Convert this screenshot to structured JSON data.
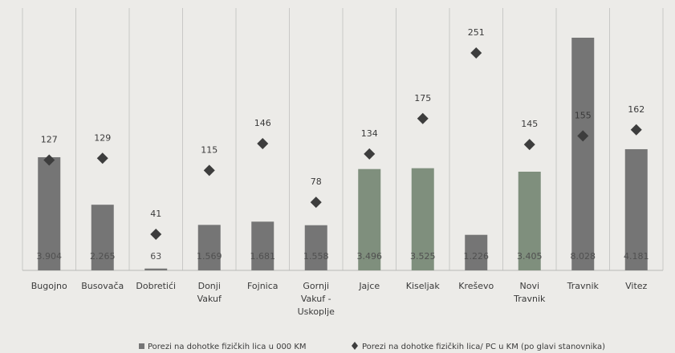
{
  "chart_data": {
    "type": "bar",
    "categories": [
      [
        "Bugojno"
      ],
      [
        "Busovača"
      ],
      [
        "Dobretići"
      ],
      [
        "Donji",
        "Vakuf"
      ],
      [
        "Fojnica"
      ],
      [
        "Gornji",
        "Vakuf -",
        "Uskoplje"
      ],
      [
        "Jajce"
      ],
      [
        "Kiseljak"
      ],
      [
        "Kreševo"
      ],
      [
        "Novi",
        "Travnik"
      ],
      [
        "Travnik"
      ],
      [
        "Vitez"
      ]
    ],
    "series": [
      {
        "name": "Porezi na dohotke fizičkih lica u 000 KM",
        "type": "bar",
        "values": [
          3904,
          2265,
          63,
          1569,
          1681,
          1558,
          3496,
          3525,
          1226,
          3405,
          8028,
          4181
        ],
        "labels": [
          "3.904",
          "2.265",
          "63",
          "1.569",
          "1.681",
          "1.558",
          "3.496",
          "3.525",
          "1.226",
          "3.405",
          "8.028",
          "4.181"
        ]
      },
      {
        "name": "Porezi na dohotke fizičkih lica/ PC u KM (po glavi stanovnika)",
        "type": "scatter",
        "marker": "diamond",
        "values": [
          127,
          129,
          41,
          115,
          146,
          78,
          134,
          175,
          251,
          145,
          155,
          162
        ],
        "labels": [
          "127",
          "129",
          "41",
          "115",
          "146",
          "78",
          "134",
          "175",
          "251",
          "145",
          "155",
          "162"
        ]
      }
    ],
    "colors": {
      "bar": "#757575",
      "bar_green": "#7f8f7d",
      "marker": "#3d3d3d"
    },
    "legend": "bottom",
    "grid": "vertical-separators"
  }
}
